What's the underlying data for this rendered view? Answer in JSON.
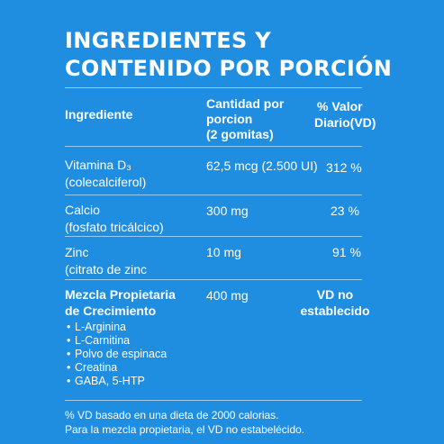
{
  "title": {
    "line1": "INGREDIENTES Y",
    "line2": "CONTENIDO POR PORCIÓN"
  },
  "header": {
    "ingredient": "Ingrediente",
    "amount_line1": "Cantidad por",
    "amount_line2": "porcion",
    "amount_line3": "(2 gomitas)",
    "dv_line1": "% Valor",
    "dv_line2": "Diario(VD)"
  },
  "rows": [
    {
      "name_line1": "Vitamina D₃",
      "name_line2": "(colecalciferol)",
      "amount": "62,5 mcg (2.500 UI)",
      "dv": "312 %"
    },
    {
      "name_line1": "Calcio",
      "name_line2": "(fosfato tricálcico)",
      "amount": "300 mg",
      "dv": "23 %"
    },
    {
      "name_line1": "Zinc",
      "name_line2": "(citrato de zinc",
      "amount": "10 mg",
      "dv": "91 %"
    },
    {
      "name_line1": "Mezcla Propietaria",
      "name_line2": "de Crecimiento",
      "amount": "400 mg",
      "dv_line1": "VD no",
      "dv_line2": "establecido"
    }
  ],
  "blend_items": [
    "L-Arginina",
    "L-Carnitina",
    "Polvo de espinaca",
    "Creatina",
    "GABA, 5-HTP"
  ],
  "bullet_glyph": "•",
  "footnote": {
    "line1": "% VD basado en una dieta de 2000 calorias.",
    "line2": "Para la mezcla propietaria, el VD no estabelécido."
  },
  "colors": {
    "background": "#1f8de0",
    "text": "#ffffff"
  }
}
